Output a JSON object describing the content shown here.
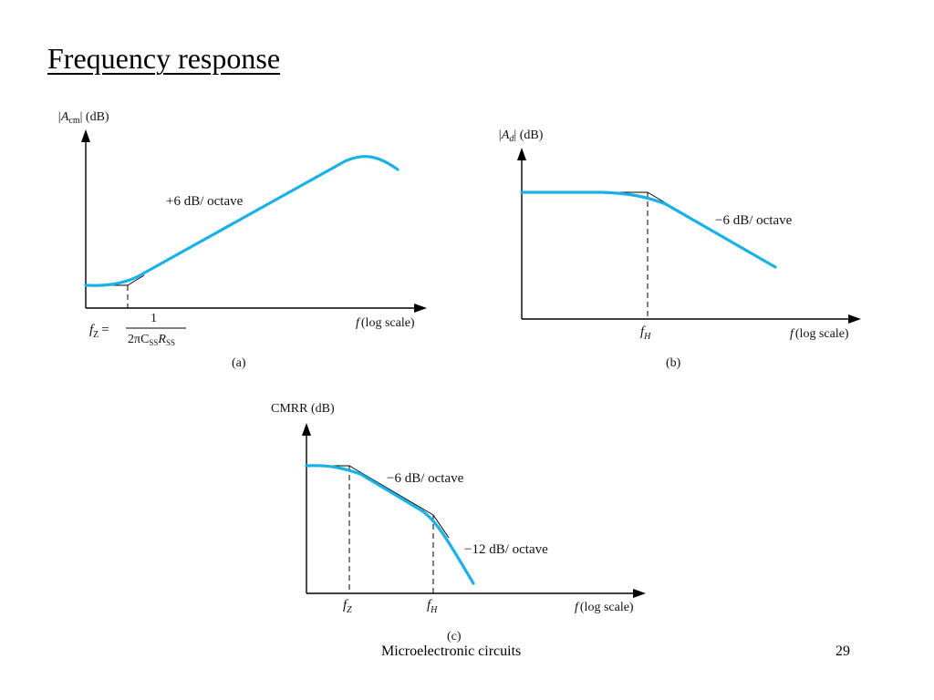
{
  "title": "Frequency response",
  "panels": {
    "a": {
      "y_label": "|A",
      "y_sub": "cm",
      "y_unit": "| (dB)",
      "slope_label": "+6 dB/ octave",
      "x_label": "f (log scale)",
      "fz_label": "f",
      "fz_sub": "Z",
      "fz_eq": "=",
      "fz_num": "1",
      "fz_den": "2πC",
      "fz_den_sub1": "SS",
      "fz_den_r": "R",
      "fz_den_sub2": "SS",
      "caption": "(a)"
    },
    "b": {
      "y_label": "|A",
      "y_sub": "d",
      "y_unit": "| (dB)",
      "slope_label": "−6 dB/ octave",
      "x_label": "f (log scale)",
      "fh_label": "f",
      "fh_sub": "H",
      "caption": "(b)"
    },
    "c": {
      "y_label": "CMRR (dB)",
      "slope1_label": "−6 dB/ octave",
      "slope2_label": "−12 dB/ octave",
      "x_label": "f (log scale)",
      "fz_label": "f",
      "fz_sub": "Z",
      "fh_label": "f",
      "fh_sub": "H",
      "caption": "(c)"
    }
  },
  "footer": {
    "center": "Microelectronic circuits",
    "page": "29"
  },
  "colors": {
    "curve": "#1ab1e6",
    "axis": "#000000",
    "background": "#ffffff"
  }
}
